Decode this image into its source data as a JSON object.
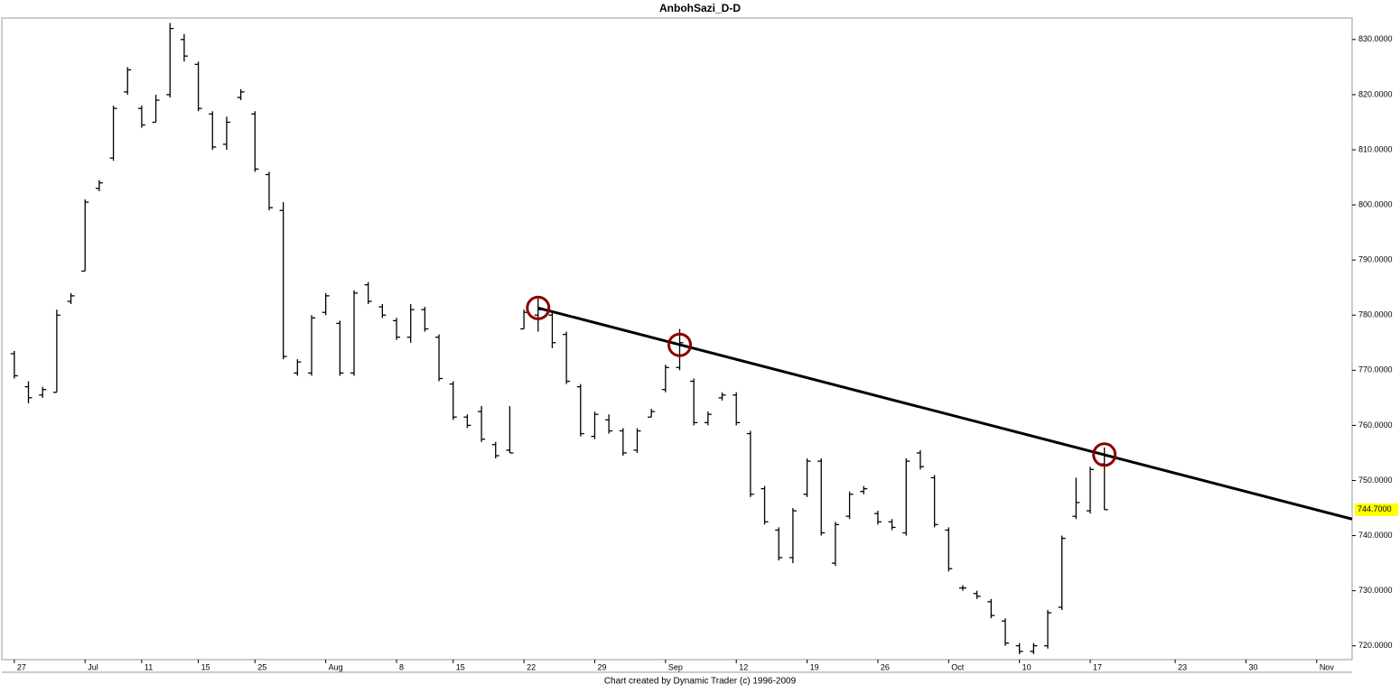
{
  "chart_data": {
    "type": "ohlc",
    "title": "AnbohSazi_D-D",
    "footer": "Chart created by Dynamic Trader  (c) 1996-2009",
    "categories": [
      "27",
      null,
      null,
      null,
      null,
      "Jul",
      null,
      null,
      null,
      "11",
      null,
      null,
      null,
      "15",
      null,
      null,
      null,
      "25",
      null,
      null,
      null,
      null,
      "Aug",
      null,
      null,
      null,
      null,
      "8",
      null,
      null,
      null,
      "15",
      null,
      null,
      null,
      null,
      "22",
      null,
      null,
      null,
      null,
      "29",
      null,
      null,
      null,
      null,
      "Sep",
      null,
      null,
      null,
      null,
      "12",
      null,
      null,
      null,
      null,
      "19",
      null,
      null,
      null,
      null,
      "26",
      null,
      null,
      null,
      null,
      "Oct",
      null,
      null,
      null,
      null,
      "10",
      null,
      null,
      null,
      null,
      "17",
      null,
      null,
      null,
      null,
      null,
      "23",
      null,
      null,
      null,
      null,
      "30",
      null,
      null,
      null,
      null,
      "Nov",
      null,
      null
    ],
    "open": [
      773,
      767,
      765.5,
      766,
      782.5,
      788,
      803,
      808.5,
      820.5,
      817.5,
      815,
      820,
      830,
      825.5,
      816.5,
      811,
      819.5,
      816.5,
      805.5,
      799,
      769.5,
      769.5,
      780.5,
      778.5,
      769.5,
      785.5,
      781.5,
      779,
      776,
      781,
      776,
      767.5,
      761.5,
      762.5,
      756.5,
      755.5,
      777.5,
      780,
      780,
      776.5,
      767,
      758,
      761,
      759,
      755.5,
      761.5,
      766.5,
      770.5,
      768,
      760.5,
      765,
      765.5,
      758.5,
      748.5,
      741,
      736,
      747.5,
      753.5,
      735,
      743.5,
      748,
      744,
      742.5,
      740.5,
      755,
      750.5,
      741,
      730.5,
      729.5,
      728,
      724.5,
      720,
      719,
      720,
      727,
      743.5,
      744.5,
      753,
      null,
      null,
      null,
      null,
      null,
      null,
      null,
      null,
      null,
      null,
      null,
      null,
      null,
      null,
      null,
      null,
      null
    ],
    "high": [
      773.5,
      768,
      767,
      781,
      784,
      801,
      804.5,
      818,
      825,
      818,
      820,
      833,
      831,
      826,
      817,
      816,
      821,
      817,
      806,
      800.5,
      772,
      780,
      784,
      779,
      784.5,
      786,
      782,
      779.5,
      782,
      781.5,
      776.5,
      768,
      762,
      763.5,
      757,
      763.5,
      781,
      783,
      780.5,
      777,
      767.5,
      762.5,
      762,
      759.5,
      759.5,
      763,
      771,
      777.5,
      768.5,
      762.5,
      766,
      766,
      759,
      749,
      741.5,
      745,
      754,
      754,
      742.5,
      748,
      749,
      744.5,
      743,
      754,
      755.5,
      751,
      741.5,
      731,
      730,
      728.5,
      725,
      720.5,
      720.5,
      726.5,
      740,
      750.5,
      752.5,
      756,
      null,
      null,
      null,
      null,
      null,
      null,
      null,
      null,
      null,
      null,
      null,
      null,
      null,
      null,
      null,
      null,
      null
    ],
    "low": [
      768.5,
      764,
      765,
      766,
      782,
      788,
      802.5,
      808,
      820,
      814,
      815,
      819.5,
      826,
      817,
      810,
      810,
      819,
      806,
      799,
      772,
      769,
      769,
      780,
      769,
      769,
      782,
      779.5,
      775.5,
      775,
      777,
      768,
      761,
      759.5,
      757,
      754,
      755,
      777.5,
      777,
      774,
      767.5,
      758,
      757.5,
      758.5,
      754.5,
      755,
      761.5,
      766,
      770,
      760,
      760,
      764.5,
      760,
      747,
      742,
      735.5,
      735,
      747,
      740,
      734.5,
      743,
      747.5,
      742,
      741,
      740,
      752,
      741.5,
      733.5,
      730,
      728.5,
      725,
      720,
      718.5,
      718.5,
      719.5,
      726.5,
      743,
      744,
      744.7,
      null,
      null,
      null,
      null,
      null,
      null,
      null,
      null,
      null,
      null,
      null,
      null,
      null,
      null,
      null,
      null,
      null
    ],
    "close": [
      769,
      765,
      766.5,
      780,
      783.5,
      800.5,
      804,
      817.5,
      824.5,
      814.5,
      819,
      832,
      827,
      817.5,
      810.5,
      815,
      820.5,
      806.5,
      799.5,
      772.5,
      771.5,
      779.5,
      783.5,
      769.5,
      784,
      782.5,
      780,
      776,
      781,
      777.5,
      768.5,
      761.5,
      760,
      757.5,
      754.5,
      755,
      780.5,
      781,
      775,
      768,
      758.5,
      762,
      759,
      755,
      759,
      762.5,
      770.5,
      775,
      760.5,
      762,
      765.5,
      760.5,
      747.5,
      742.5,
      736,
      744.5,
      753.5,
      740.5,
      742,
      747.5,
      748.5,
      742.5,
      741.5,
      753.5,
      752.5,
      742,
      734,
      730.5,
      729,
      725.5,
      720.5,
      719,
      720,
      726,
      739.5,
      746,
      752,
      744.7,
      null,
      null,
      null,
      null,
      null,
      null,
      null,
      null,
      null,
      null,
      null,
      null,
      null,
      null,
      null,
      null,
      null
    ],
    "color": "#000000",
    "ylim": [
      717.5,
      833.9
    ],
    "yticks": [
      {
        "value": 720,
        "label": "720.0000"
      },
      {
        "value": 730,
        "label": "730.0000"
      },
      {
        "value": 740,
        "label": "740.0000"
      },
      {
        "value": 750,
        "label": "750.0000"
      },
      {
        "value": 760,
        "label": "760.0000"
      },
      {
        "value": 770,
        "label": "770.0000"
      },
      {
        "value": 780,
        "label": "780.0000"
      },
      {
        "value": 790,
        "label": "790.0000"
      },
      {
        "value": 800,
        "label": "800.0000"
      },
      {
        "value": 810,
        "label": "810.0000"
      },
      {
        "value": 820,
        "label": "820.0000"
      },
      {
        "value": 830,
        "label": "830.0000"
      }
    ],
    "last_price": {
      "value": 744.7,
      "label": "744.7000",
      "color": "#ffff00"
    },
    "trendline": {
      "start": [
        37,
        781.3
      ],
      "end": [
        94.5,
        743
      ],
      "color": "#000000"
    },
    "touch_points": [
      {
        "index": 37,
        "value": 781.3
      },
      {
        "index": 47,
        "value": 774.6
      },
      {
        "index": 77,
        "value": 754.7
      }
    ],
    "touch_color": "#8b0000",
    "grid": false
  }
}
